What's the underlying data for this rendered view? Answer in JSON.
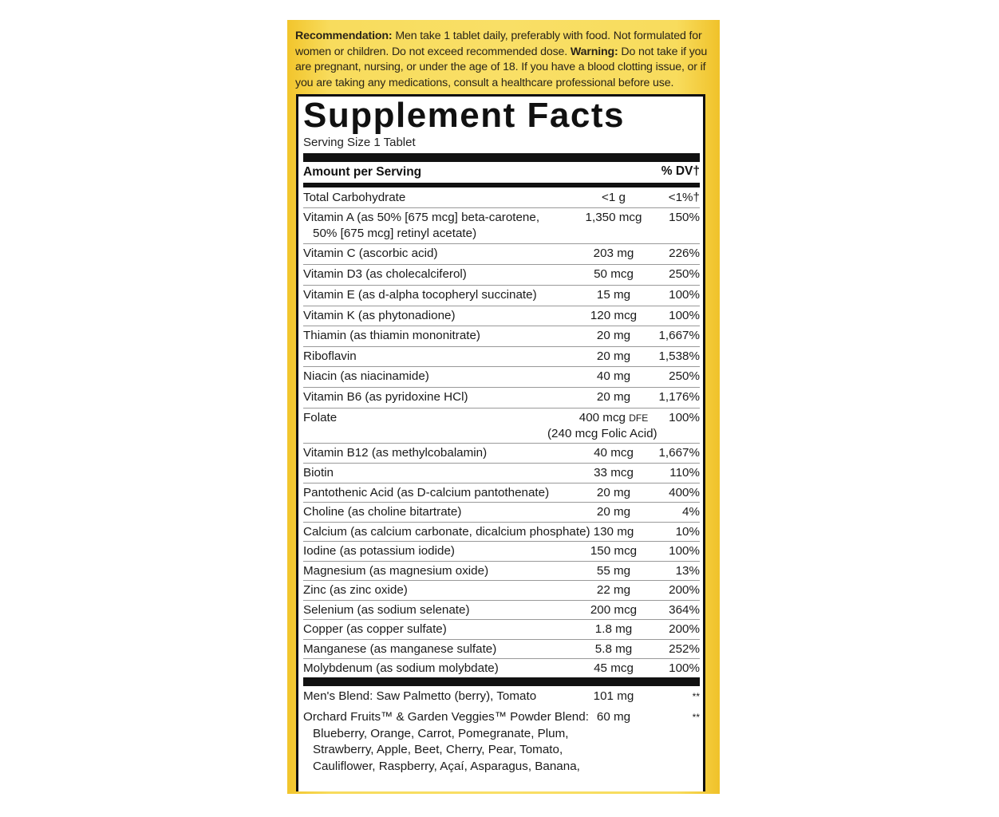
{
  "recommendation": {
    "rec_label": "Recommendation:",
    "rec_text": "Men take 1 tablet daily, preferably with food. Not formulated for women or children. Do not exceed recommended dose.",
    "warn_label": "Warning:",
    "warn_text": "Do not take if you are pregnant, nursing, or under the age of 18. If you have a blood clotting issue, or if you are taking any medications, consult a healthcare professional before use."
  },
  "facts": {
    "title": "Supplement Facts",
    "serving_size": "Serving Size 1 Tablet",
    "header_amount": "Amount per Serving",
    "header_dv": "% DV†",
    "rows": [
      {
        "name": "Total Carbohydrate",
        "amount": "<1 g",
        "dv": "<1%†"
      },
      {
        "name": "Vitamin A (as 50% [675 mcg] beta-carotene,",
        "name2": "50% [675 mcg] retinyl acetate)",
        "amount": "1,350 mcg",
        "dv": "150%"
      },
      {
        "name": "Vitamin C (ascorbic acid)",
        "amount": "203 mg",
        "dv": "226%"
      },
      {
        "name": "Vitamin D3 (as cholecalciferol)",
        "amount": "50 mcg",
        "dv": "250%"
      },
      {
        "name": "Vitamin E (as d-alpha tocopheryl succinate)",
        "amount": "15 mg",
        "dv": "100%"
      },
      {
        "name": "Vitamin K (as phytonadione)",
        "amount": "120 mcg",
        "dv": "100%"
      },
      {
        "name": "Thiamin (as thiamin mononitrate)",
        "amount": "20 mg",
        "dv": "1,667%"
      },
      {
        "name": "Riboflavin",
        "amount": "20 mg",
        "dv": "1,538%"
      },
      {
        "name": "Niacin (as niacinamide)",
        "amount": "40 mg",
        "dv": "250%"
      },
      {
        "name": "Vitamin B6 (as pyridoxine HCl)",
        "amount": "20 mg",
        "dv": "1,176%"
      },
      {
        "name": "Folate",
        "amount": "400 mcg",
        "amount_unit": "DFE",
        "amount2": "(240 mcg Folic Acid)",
        "dv": "100%"
      },
      {
        "name": "Vitamin B12 (as methylcobalamin)",
        "amount": "40 mcg",
        "dv": "1,667%"
      },
      {
        "name": "Biotin",
        "amount": "33 mcg",
        "dv": "110%"
      },
      {
        "name": "Pantothenic Acid (as D-calcium pantothenate)",
        "amount": "20 mg",
        "dv": "400%"
      },
      {
        "name": "Choline (as choline bitartrate)",
        "amount": "20 mg",
        "dv": "4%"
      },
      {
        "name": "Calcium (as calcium carbonate, dicalcium phosphate)",
        "amount": "130 mg",
        "dv": "10%"
      },
      {
        "name": "Iodine (as potassium iodide)",
        "amount": "150 mcg",
        "dv": "100%"
      },
      {
        "name": "Magnesium (as magnesium oxide)",
        "amount": "55 mg",
        "dv": "13%"
      },
      {
        "name": "Zinc (as zinc oxide)",
        "amount": "22 mg",
        "dv": "200%"
      },
      {
        "name": "Selenium (as sodium selenate)",
        "amount": "200 mcg",
        "dv": "364%"
      },
      {
        "name": "Copper (as copper sulfate)",
        "amount": "1.8 mg",
        "dv": "200%"
      },
      {
        "name": "Manganese (as manganese sulfate)",
        "amount": "5.8 mg",
        "dv": "252%"
      },
      {
        "name": "Molybdenum (as sodium molybdate)",
        "amount": "45 mcg",
        "dv": "100%"
      }
    ],
    "blends": [
      {
        "lines": [
          "Men's Blend: Saw Palmetto (berry), Tomato"
        ],
        "amount": "101 mg",
        "dv": "**"
      },
      {
        "lines": [
          "Orchard Fruits™ & Garden Veggies™ Powder Blend:",
          "Blueberry, Orange, Carrot, Pomegranate, Plum,",
          "Strawberry, Apple, Beet, Cherry, Pear, Tomato,",
          "Cauliflower, Raspberry, Açaí, Asparagus, Banana,"
        ],
        "amount": "60 mg",
        "dv": "**"
      }
    ]
  }
}
